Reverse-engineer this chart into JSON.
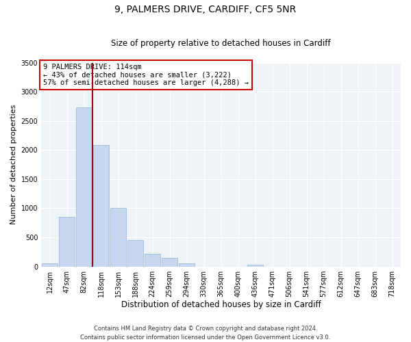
{
  "title": "9, PALMERS DRIVE, CARDIFF, CF5 5NR",
  "subtitle": "Size of property relative to detached houses in Cardiff",
  "xlabel": "Distribution of detached houses by size in Cardiff",
  "ylabel": "Number of detached properties",
  "footnote1": "Contains HM Land Registry data © Crown copyright and database right 2024.",
  "footnote2": "Contains public sector information licensed under the Open Government Licence v3.0.",
  "annotation_line1": "9 PALMERS DRIVE: 114sqm",
  "annotation_line2": "← 43% of detached houses are smaller (3,222)",
  "annotation_line3": "57% of semi-detached houses are larger (4,288) →",
  "bar_labels": [
    "12sqm",
    "47sqm",
    "82sqm",
    "118sqm",
    "153sqm",
    "188sqm",
    "224sqm",
    "259sqm",
    "294sqm",
    "330sqm",
    "365sqm",
    "400sqm",
    "436sqm",
    "471sqm",
    "506sqm",
    "541sqm",
    "577sqm",
    "612sqm",
    "647sqm",
    "683sqm",
    "718sqm"
  ],
  "bar_values": [
    55,
    850,
    2730,
    2080,
    1010,
    455,
    215,
    145,
    55,
    0,
    0,
    0,
    25,
    0,
    0,
    0,
    0,
    0,
    0,
    0,
    0
  ],
  "bar_color": "#c5d8f0",
  "bar_edge_color": "#a0bcd8",
  "vline_color": "#aa0000",
  "ylim": [
    0,
    3500
  ],
  "yticks": [
    0,
    500,
    1000,
    1500,
    2000,
    2500,
    3000,
    3500
  ],
  "background_color": "#eef3f8",
  "title_fontsize": 10,
  "subtitle_fontsize": 8.5,
  "ylabel_fontsize": 8,
  "xlabel_fontsize": 8.5
}
